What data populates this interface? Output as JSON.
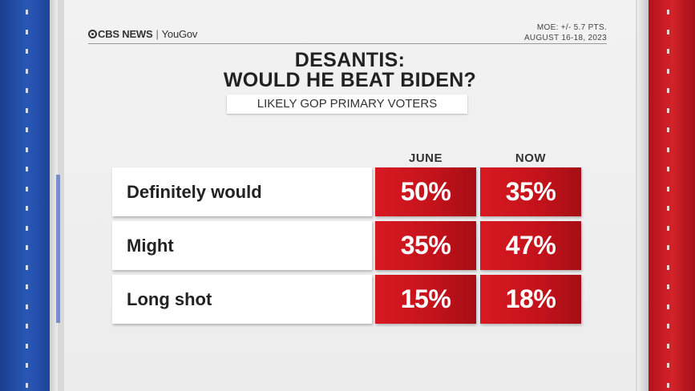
{
  "header": {
    "logo_cbs": "CBS NEWS",
    "logo_sep": "|",
    "logo_yougov": "YouGov",
    "moe": "MOE: +/- 5.7 PTS.",
    "dates": "AUGUST 16-18, 2023"
  },
  "title_line1": "DESANTIS:",
  "title_line2": "WOULD HE BEAT BIDEN?",
  "subtitle": "LIKELY GOP PRIMARY VOTERS",
  "colors": {
    "blue": "#2a57b7",
    "red": "#c3121b",
    "panel": "#efefef"
  },
  "chart_data": {
    "type": "table",
    "columns": [
      "JUNE",
      "NOW"
    ],
    "rows": [
      {
        "label": "Definitely would",
        "values": [
          "50%",
          "35%"
        ]
      },
      {
        "label": "Might",
        "values": [
          "35%",
          "47%"
        ]
      },
      {
        "label": "Long shot",
        "values": [
          "15%",
          "18%"
        ]
      }
    ]
  }
}
